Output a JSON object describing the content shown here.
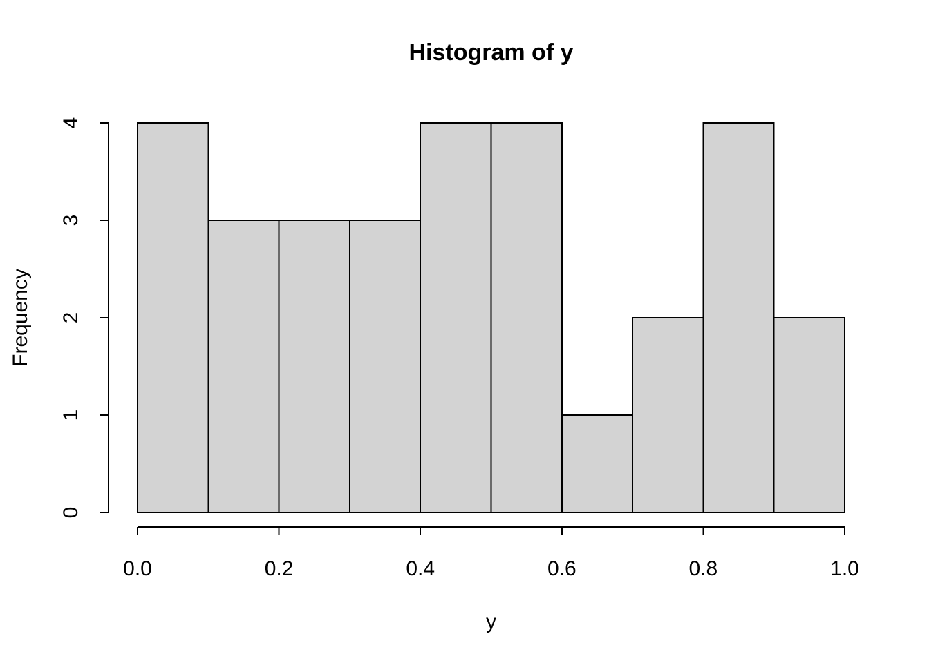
{
  "figure": {
    "title": "Histogram of y",
    "background": "#ffffff"
  },
  "chart_data": {
    "type": "bar",
    "subtype": "histogram",
    "title": "Histogram of y",
    "xlabel": "y",
    "ylabel": "Frequency",
    "bin_edges": [
      0.0,
      0.1,
      0.2,
      0.3,
      0.4,
      0.5,
      0.6,
      0.7,
      0.8,
      0.9,
      1.0
    ],
    "values": [
      4,
      3,
      3,
      3,
      4,
      4,
      1,
      2,
      4,
      2
    ],
    "xlim": [
      0.0,
      1.0
    ],
    "ylim": [
      0,
      4
    ],
    "x_tick_labels": [
      "0.0",
      "0.2",
      "0.4",
      "0.6",
      "0.8",
      "1.0"
    ],
    "y_tick_labels": [
      "0",
      "1",
      "2",
      "3",
      "4"
    ],
    "grid": false,
    "legend": false,
    "bar_fill": "#d3d3d3",
    "bar_stroke": "#000000",
    "axis_color": "#000000",
    "background": "#ffffff"
  }
}
